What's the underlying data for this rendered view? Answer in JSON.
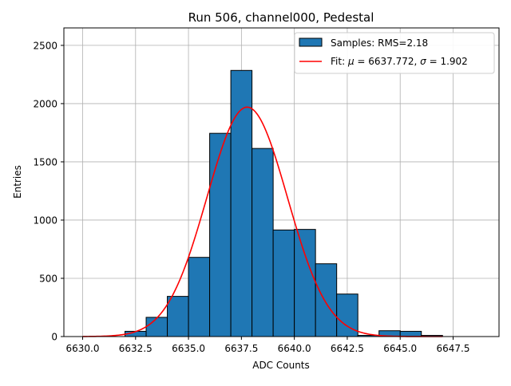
{
  "chart_data": {
    "type": "bar",
    "title": "Run 506, channel000, Pedestal",
    "xlabel": "ADC Counts",
    "ylabel": "Entries",
    "xlim": [
      629.0,
      6649.5
    ],
    "ylim": [
      0,
      2650
    ],
    "x_ticks": [
      6630.0,
      6632.5,
      6635.0,
      6637.5,
      6640.0,
      6642.5,
      6645.0,
      6647.5
    ],
    "x_tick_labels": [
      "6630.0",
      "6632.5",
      "6635.0",
      "6637.5",
      "6640.0",
      "6642.5",
      "6645.0",
      "6647.5"
    ],
    "y_ticks": [
      0,
      500,
      1000,
      1500,
      2000,
      2500
    ],
    "y_tick_labels": [
      "0",
      "500",
      "1000",
      "1500",
      "2000",
      "2500"
    ],
    "grid": true,
    "legend_position": "top-right",
    "histogram": {
      "name": "Samples: RMS=2.18",
      "color": "#1f77b4",
      "edge_color": "#000000",
      "bins": [
        {
          "left": 6630.0,
          "right": 6631.0,
          "count": 0
        },
        {
          "left": 6631.0,
          "right": 6632.0,
          "count": 0
        },
        {
          "left": 6632.0,
          "right": 6633.0,
          "count": 45
        },
        {
          "left": 6633.0,
          "right": 6634.0,
          "count": 165
        },
        {
          "left": 6634.0,
          "right": 6635.0,
          "count": 345
        },
        {
          "left": 6635.0,
          "right": 6636.0,
          "count": 680
        },
        {
          "left": 6636.0,
          "right": 6637.0,
          "count": 1745
        },
        {
          "left": 6637.0,
          "right": 6638.0,
          "count": 2285
        },
        {
          "left": 6638.0,
          "right": 6639.0,
          "count": 1615
        },
        {
          "left": 6639.0,
          "right": 6640.0,
          "count": 915
        },
        {
          "left": 6640.0,
          "right": 6641.0,
          "count": 920
        },
        {
          "left": 6641.0,
          "right": 6642.0,
          "count": 625
        },
        {
          "left": 6642.0,
          "right": 6643.0,
          "count": 365
        },
        {
          "left": 6643.0,
          "right": 6644.0,
          "count": 10
        },
        {
          "left": 6644.0,
          "right": 6645.0,
          "count": 50
        },
        {
          "left": 6645.0,
          "right": 6646.0,
          "count": 45
        },
        {
          "left": 6646.0,
          "right": 6647.0,
          "count": 10
        }
      ]
    },
    "fit": {
      "name_prefix": "Fit: ",
      "name_mu": "μ",
      "name_mid": " = 6637.772, ",
      "name_sigma": "σ",
      "name_suffix": " = 1.902",
      "color": "#ff0000",
      "mu": 6637.772,
      "sigma": 1.902,
      "amplitude": 1970,
      "x_range": [
        6630.0,
        6647.0
      ]
    }
  }
}
